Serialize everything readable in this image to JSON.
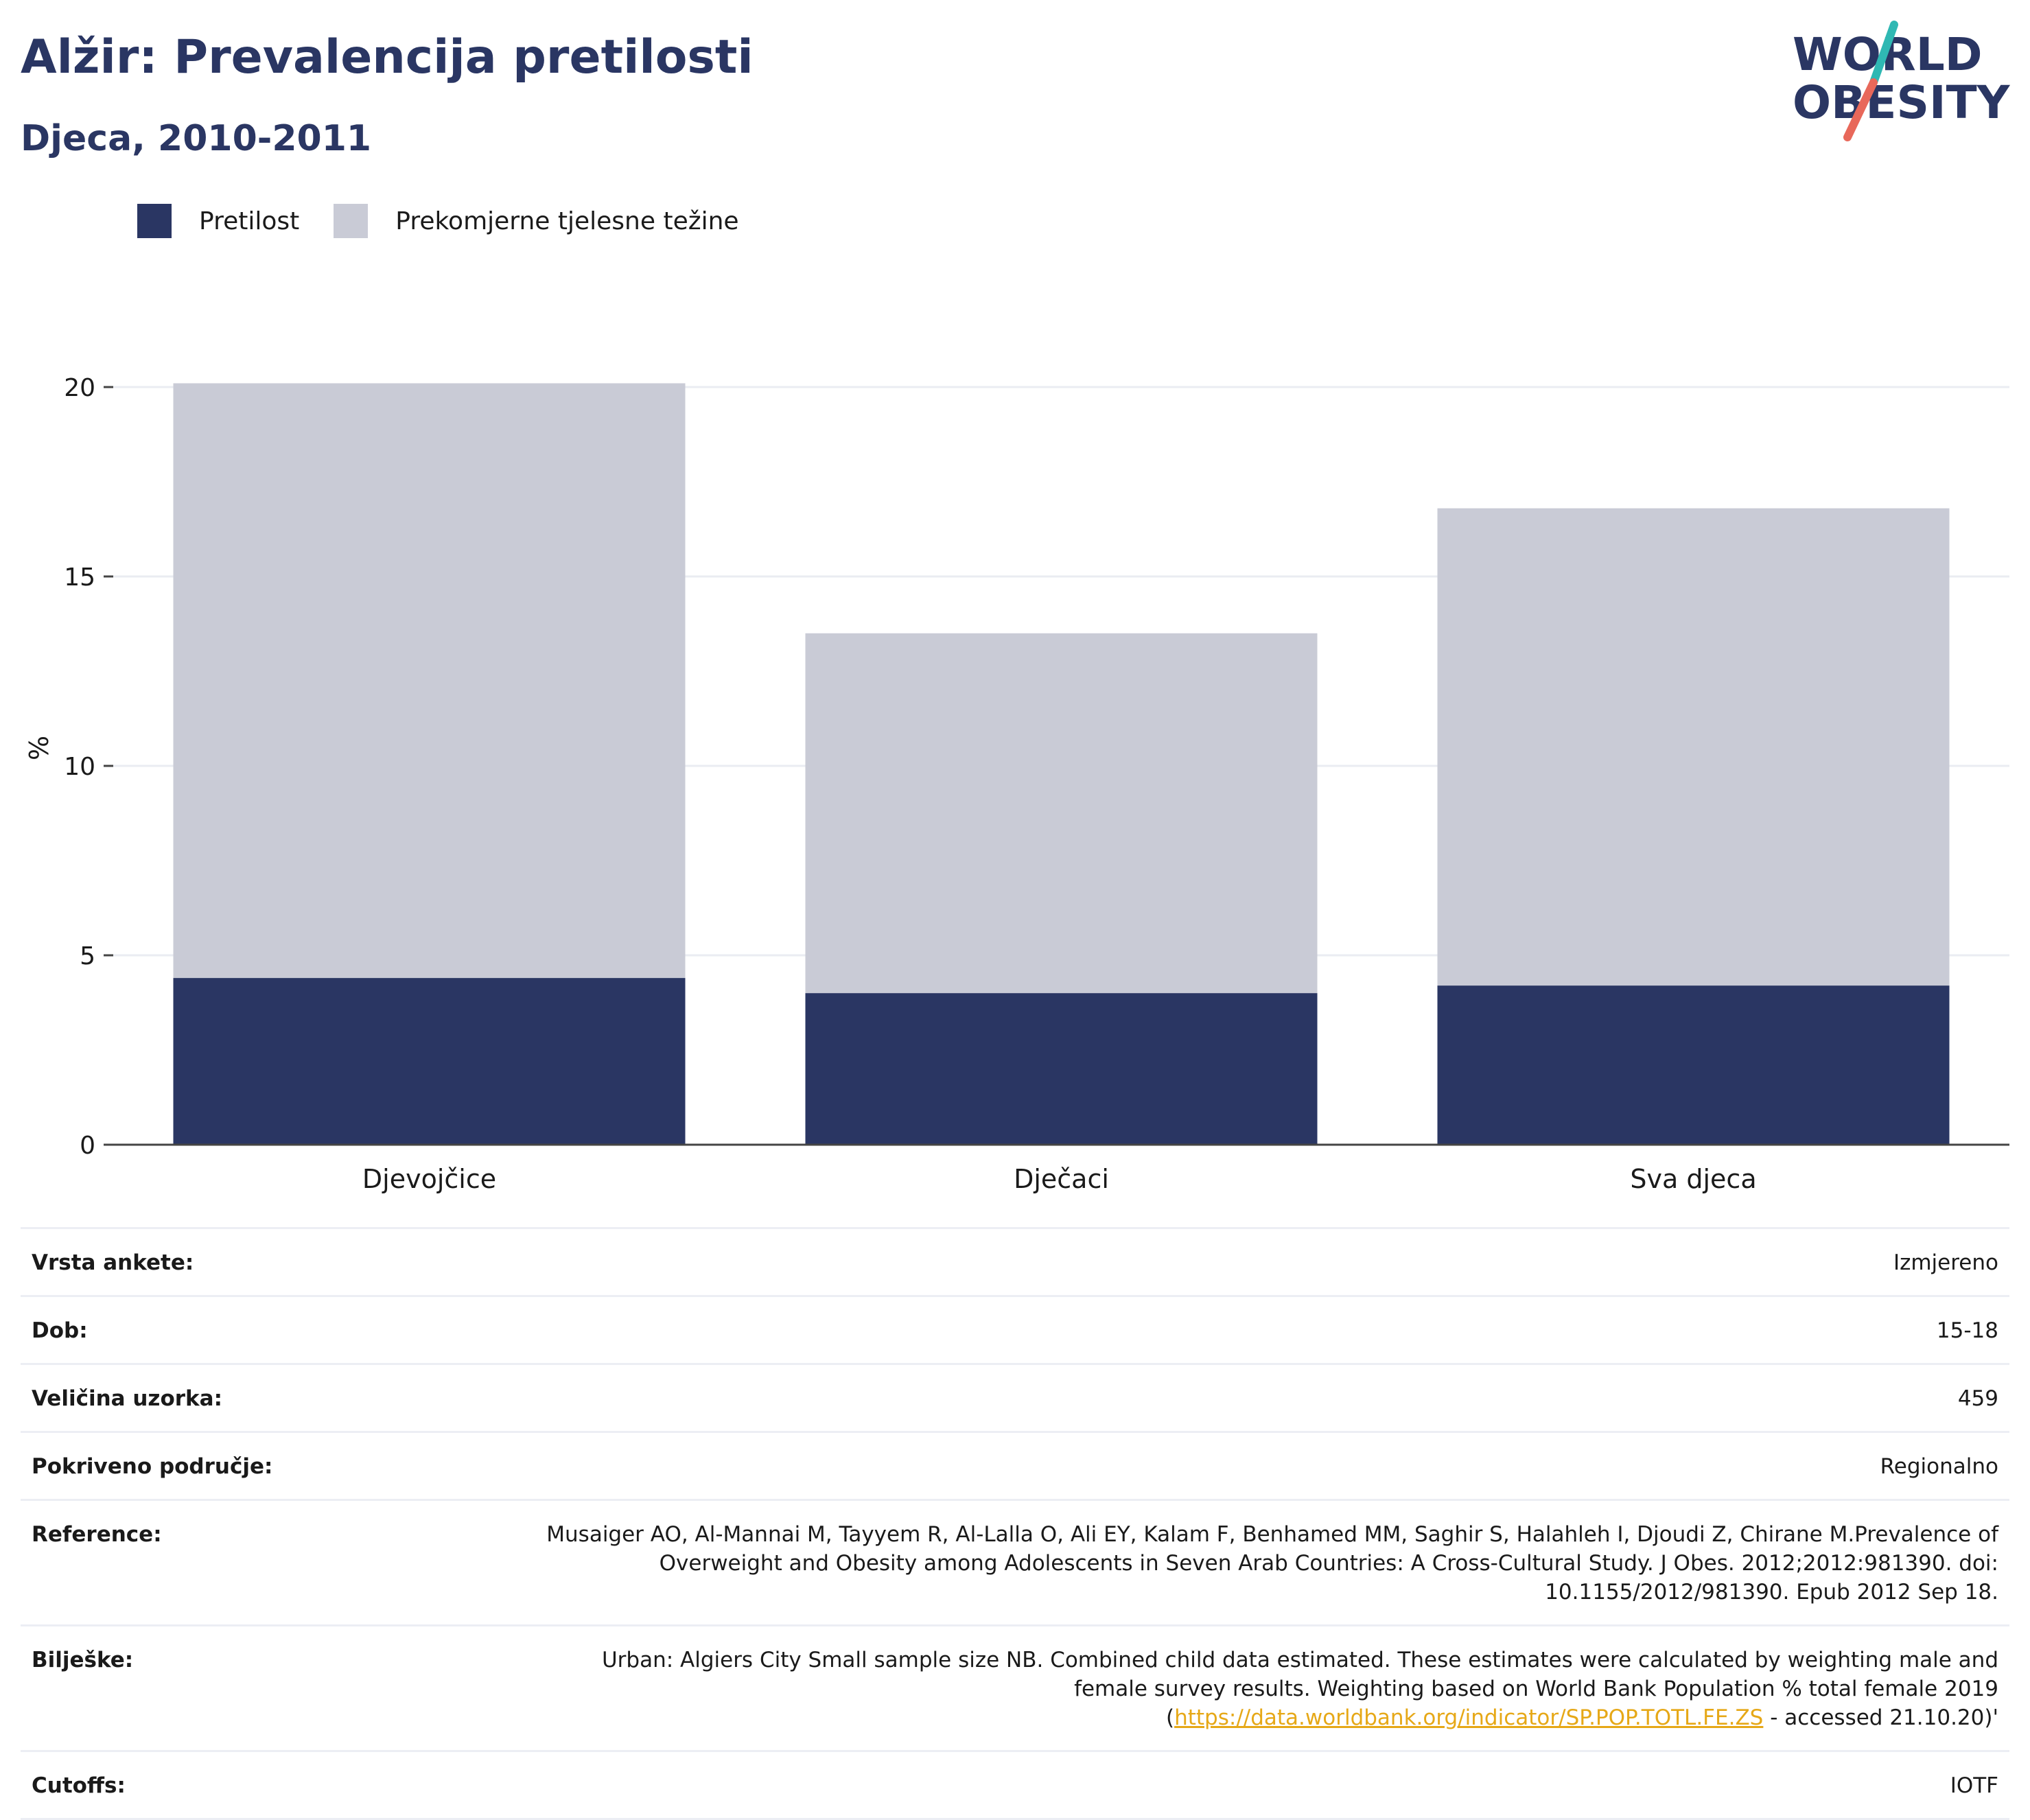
{
  "header": {
    "title": "Alžir: Prevalencija pretilosti",
    "subtitle": "Djeca, 2010-2011"
  },
  "logo": {
    "line1": "WORLD",
    "line2": "OBESITY",
    "colors": {
      "text": "#2a3663",
      "slash_top": "#2fb8b3",
      "slash_bottom": "#e8685a"
    }
  },
  "legend": [
    {
      "label": "Pretilost",
      "color": "#2a3663"
    },
    {
      "label": "Prekomjerne tjelesne težine",
      "color": "#c9cbd6"
    }
  ],
  "chart_data": {
    "type": "bar",
    "stacked": false,
    "overlaid": true,
    "categories": [
      "Djevojčice",
      "Dječaci",
      "Sva djeca"
    ],
    "series": [
      {
        "name": "Prekomjerne tjelesne težine",
        "values": [
          20.1,
          13.5,
          16.8
        ],
        "color": "#c9cbd6"
      },
      {
        "name": "Pretilost",
        "values": [
          4.4,
          4.0,
          4.2
        ],
        "color": "#2a3663"
      }
    ],
    "ylabel": "%",
    "xlabel": "",
    "ylim": [
      0,
      20
    ],
    "yticks": [
      0,
      5,
      10,
      15,
      20
    ],
    "grid": true,
    "legend_position": "top-left"
  },
  "info": {
    "survey_type": {
      "label": "Vrsta ankete:",
      "value": "Izmjereno"
    },
    "age": {
      "label": "Dob:",
      "value": "15-18"
    },
    "sample_size": {
      "label": "Veličina uzorka:",
      "value": "459"
    },
    "coverage": {
      "label": "Pokriveno područje:",
      "value": "Regionalno"
    },
    "references": {
      "label": "Reference:",
      "value": "Musaiger AO, Al-Mannai M, Tayyem R, Al-Lalla O, Ali EY, Kalam F, Benhamed MM, Saghir S, Halahleh I, Djoudi Z, Chirane M.Prevalence of Overweight and Obesity among Adolescents in Seven Arab Countries: A Cross-Cultural Study. J Obes. 2012;2012:981390. doi: 10.1155/2012/981390. Epub 2012 Sep 18."
    },
    "notes": {
      "label": "Bilješke:",
      "text_before": "Urban: Algiers City Small sample size NB. Combined child data estimated. These estimates were calculated by weighting male and female survey results. Weighting based on World Bank Population % total female 2019 (",
      "link": "https://data.worldbank.org/indicator/SP.POP.TOTL.FE.ZS",
      "text_after": " - accessed 21.10.20)'",
      "link_color": "#e6a817"
    },
    "cutoffs": {
      "label": "Cutoffs:",
      "value": "IOTF"
    }
  }
}
